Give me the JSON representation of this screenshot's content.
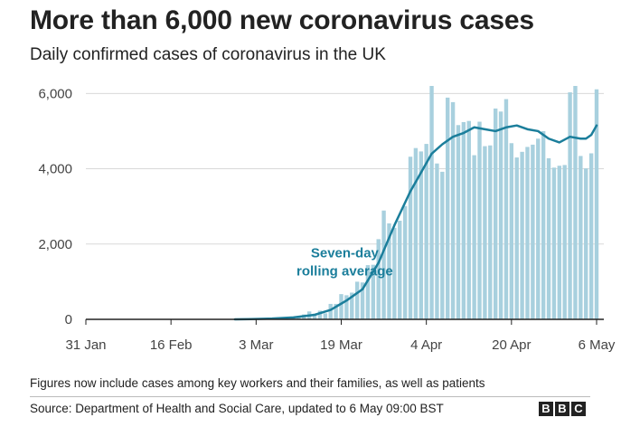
{
  "header": {
    "title": "More than 6,000 new coronavirus cases",
    "subtitle": "Daily confirmed cases of coronavirus in the UK"
  },
  "footer": {
    "note": "Figures now include cases among key workers and their families, as well as patients",
    "source": "Source: Department of Health and Social Care, updated to 6 May 09:00 BST",
    "logo": [
      "B",
      "B",
      "C"
    ]
  },
  "colors": {
    "bars": "#a8d0de",
    "line": "#1b7e9b",
    "axis": "#222222",
    "grid": "#d9d9d9",
    "annotation": "#1b7e9b"
  },
  "chart_data": {
    "type": "bar",
    "x_start": "2020-01-31",
    "x_end": "2020-05-06",
    "xticks": [
      {
        "date": "2020-01-31",
        "label": "31 Jan"
      },
      {
        "date": "2020-02-16",
        "label": "16 Feb"
      },
      {
        "date": "2020-03-03",
        "label": "3 Mar"
      },
      {
        "date": "2020-03-19",
        "label": "19 Mar"
      },
      {
        "date": "2020-04-04",
        "label": "4 Apr"
      },
      {
        "date": "2020-04-20",
        "label": "20 Apr"
      },
      {
        "date": "2020-05-06",
        "label": "6 May"
      }
    ],
    "ylim": [
      0,
      6200
    ],
    "yticks": [
      0,
      2000,
      4000,
      6000
    ],
    "ytick_labels": [
      "0",
      "2,000",
      "4,000",
      "6,000"
    ],
    "grid": true,
    "series": [
      {
        "kind": "bar",
        "dates": [
          "2020-03-02",
          "2020-03-03",
          "2020-03-04",
          "2020-03-05",
          "2020-03-06",
          "2020-03-07",
          "2020-03-08",
          "2020-03-09",
          "2020-03-10",
          "2020-03-11",
          "2020-03-12",
          "2020-03-13",
          "2020-03-14",
          "2020-03-15",
          "2020-03-16",
          "2020-03-17",
          "2020-03-18",
          "2020-03-19",
          "2020-03-20",
          "2020-03-21",
          "2020-03-22",
          "2020-03-23",
          "2020-03-24",
          "2020-03-25",
          "2020-03-26",
          "2020-03-27",
          "2020-03-28",
          "2020-03-29",
          "2020-03-30",
          "2020-03-31",
          "2020-04-01",
          "2020-04-02",
          "2020-04-03",
          "2020-04-04",
          "2020-04-05",
          "2020-04-06",
          "2020-04-07",
          "2020-04-08",
          "2020-04-09",
          "2020-04-10",
          "2020-04-11",
          "2020-04-12",
          "2020-04-13",
          "2020-04-14",
          "2020-04-15",
          "2020-04-16",
          "2020-04-17",
          "2020-04-18",
          "2020-04-19",
          "2020-04-20",
          "2020-04-21",
          "2020-04-22",
          "2020-04-23",
          "2020-04-24",
          "2020-04-25",
          "2020-04-26",
          "2020-04-27",
          "2020-04-28",
          "2020-04-29",
          "2020-04-30",
          "2020-05-01",
          "2020-05-02",
          "2020-05-03",
          "2020-05-04",
          "2020-05-05",
          "2020-05-06"
        ],
        "values": [
          12,
          16,
          20,
          27,
          40,
          48,
          60,
          65,
          70,
          80,
          130,
          210,
          150,
          230,
          160,
          410,
          410,
          670,
          640,
          710,
          1000,
          980,
          1440,
          1450,
          2130,
          2890,
          2550,
          2430,
          2620,
          3010,
          4320,
          4550,
          4460,
          4660,
          6200,
          4140,
          3920,
          5890,
          5770,
          5160,
          5240,
          5270,
          4360,
          5250,
          4600,
          4620,
          5600,
          5520,
          5850,
          4680,
          4300,
          4450,
          4580,
          4640,
          4800,
          5000,
          4280,
          4030,
          4080,
          4100,
          6030,
          6200,
          4340,
          4010,
          4410,
          6110
        ]
      },
      {
        "name": "Seven-day rolling average",
        "kind": "line",
        "dates": [
          "2020-02-28",
          "2020-03-02",
          "2020-03-06",
          "2020-03-10",
          "2020-03-14",
          "2020-03-17",
          "2020-03-20",
          "2020-03-23",
          "2020-03-26",
          "2020-03-29",
          "2020-04-01",
          "2020-04-03",
          "2020-04-05",
          "2020-04-07",
          "2020-04-09",
          "2020-04-11",
          "2020-04-13",
          "2020-04-15",
          "2020-04-17",
          "2020-04-19",
          "2020-04-21",
          "2020-04-23",
          "2020-04-25",
          "2020-04-27",
          "2020-04-29",
          "2020-05-01",
          "2020-05-03",
          "2020-05-04",
          "2020-05-05",
          "2020-05-06"
        ],
        "values": [
          0,
          5,
          20,
          50,
          120,
          250,
          500,
          800,
          1500,
          2500,
          3400,
          3900,
          4400,
          4650,
          4850,
          4950,
          5100,
          5050,
          5000,
          5100,
          5150,
          5050,
          5000,
          4800,
          4700,
          4850,
          4800,
          4800,
          4900,
          5150
        ]
      }
    ],
    "annotation": {
      "text": [
        "Seven-day",
        "rolling average"
      ],
      "anchor_date": "2020-03-20",
      "anchor_value": 1650
    }
  }
}
